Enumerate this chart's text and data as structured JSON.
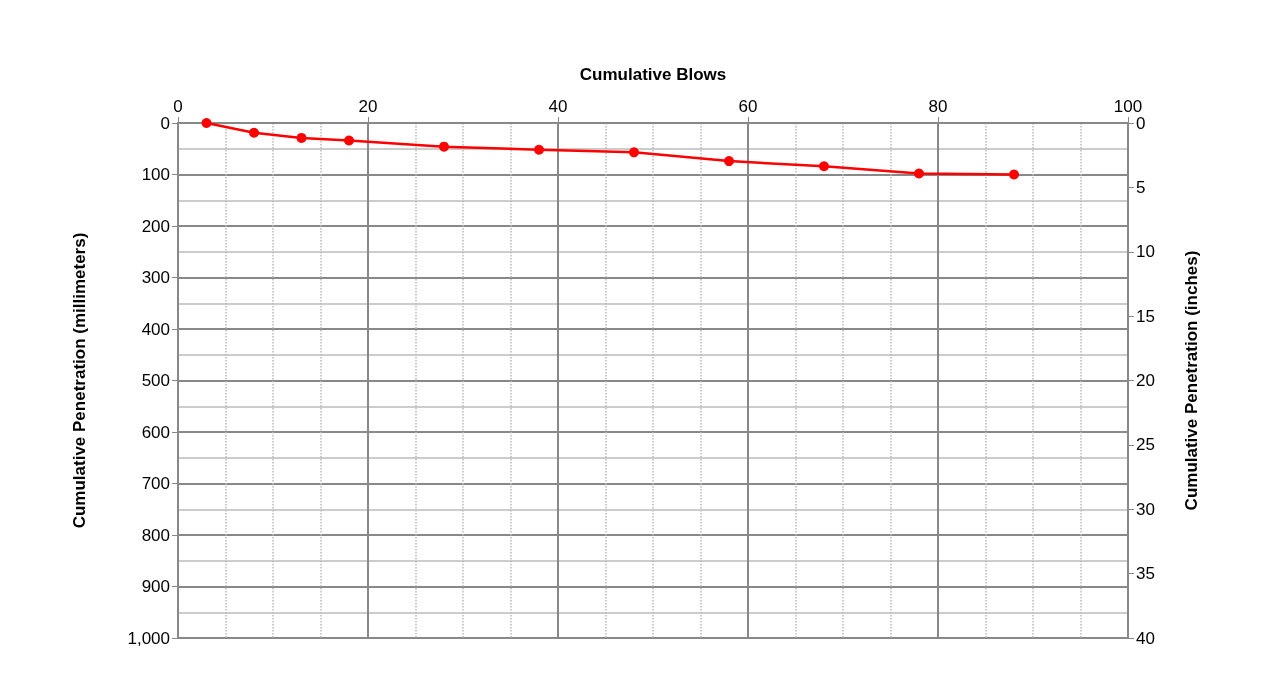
{
  "chart_data": {
    "type": "line",
    "xlabel": "Cumulative Blows",
    "ylabel": "Cumulative Penetration (millimeters)",
    "y2label": "Cumulative Penetration (inches)",
    "x": [
      3,
      8,
      13,
      18,
      28,
      38,
      48,
      58,
      68,
      78,
      88
    ],
    "series": [
      {
        "color": "#ff0000",
        "values": [
          0,
          19,
          29,
          34,
          46,
          52,
          57,
          74,
          84,
          98,
          100
        ]
      }
    ],
    "xlim": [
      0,
      100
    ],
    "xticks": [
      0,
      20,
      40,
      60,
      80,
      100
    ],
    "ylim": [
      1000,
      0
    ],
    "yticks": [
      0,
      100,
      200,
      300,
      400,
      500,
      600,
      700,
      800,
      900,
      {
        "value": 1000,
        "label": "1,000"
      }
    ],
    "y2lim": [
      40,
      0
    ],
    "y2ticks": [
      0,
      5,
      10,
      15,
      20,
      25,
      30,
      35,
      40
    ],
    "grid": true,
    "marker": "circle",
    "line_style": "solid"
  }
}
